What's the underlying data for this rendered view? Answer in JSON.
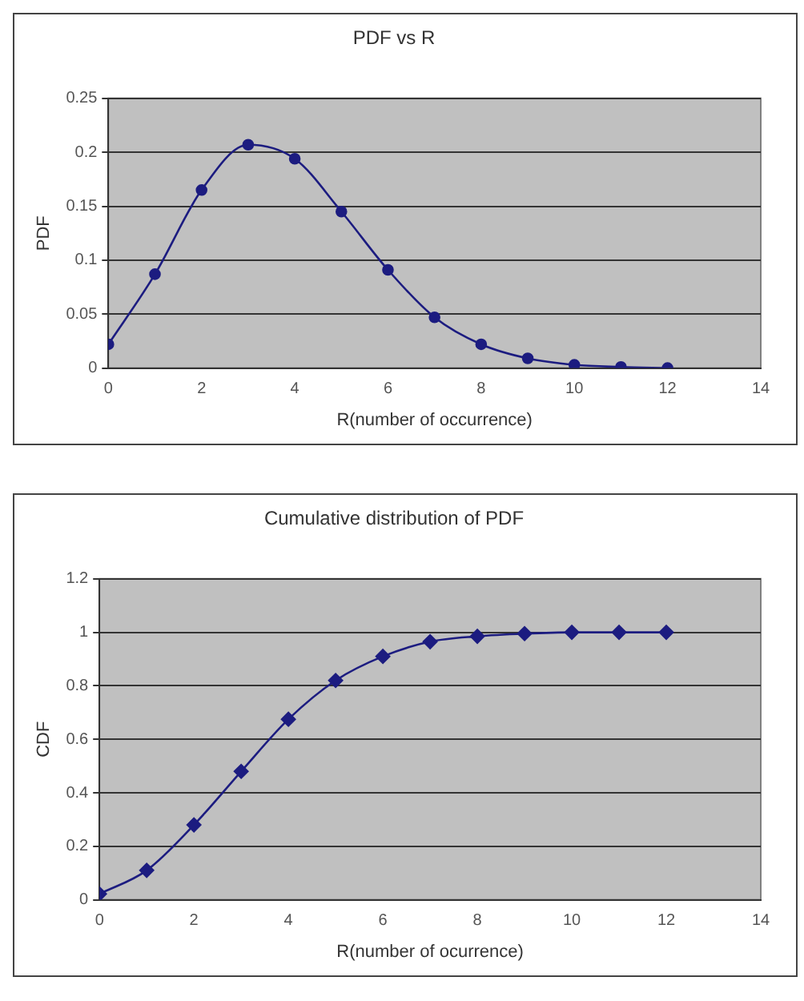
{
  "chart_data": [
    {
      "type": "line",
      "title": "PDF vs R",
      "xlabel": "R(number of occurrence)",
      "ylabel": "PDF",
      "x": [
        0,
        1,
        2,
        3,
        4,
        5,
        6,
        7,
        8,
        9,
        10,
        11,
        12
      ],
      "series": [
        {
          "color": "#1c1c80",
          "values": [
            0.022,
            0.087,
            0.165,
            0.207,
            0.194,
            0.145,
            0.091,
            0.047,
            0.022,
            0.009,
            0.003,
            0.001,
            0
          ]
        }
      ],
      "xlim": [
        0,
        14
      ],
      "xticks": [
        0,
        2,
        4,
        6,
        8,
        10,
        12,
        14
      ],
      "ylim": [
        0,
        0.25
      ],
      "yticks": [
        0,
        0.05,
        0.1,
        0.15,
        0.2,
        0.25
      ],
      "grid": "y",
      "legend": false,
      "marker": "circle",
      "line_style": "solid"
    },
    {
      "type": "line",
      "title": "Cumulative distribution of PDF",
      "xlabel": "R(number of ocurrence)",
      "ylabel": "CDF",
      "x": [
        0,
        1,
        2,
        3,
        4,
        5,
        6,
        7,
        8,
        9,
        10,
        11,
        12
      ],
      "series": [
        {
          "color": "#1c1c80",
          "values": [
            0.022,
            0.11,
            0.28,
            0.48,
            0.675,
            0.82,
            0.91,
            0.965,
            0.985,
            0.995,
            1,
            1,
            1
          ]
        }
      ],
      "xlim": [
        0,
        14
      ],
      "xticks": [
        0,
        2,
        4,
        6,
        8,
        10,
        12,
        14
      ],
      "ylim": [
        0,
        1.2
      ],
      "yticks": [
        0,
        0.2,
        0.4,
        0.6,
        0.8,
        1,
        1.2
      ],
      "grid": "y",
      "legend": false,
      "marker": "diamond",
      "line_style": "solid"
    }
  ]
}
